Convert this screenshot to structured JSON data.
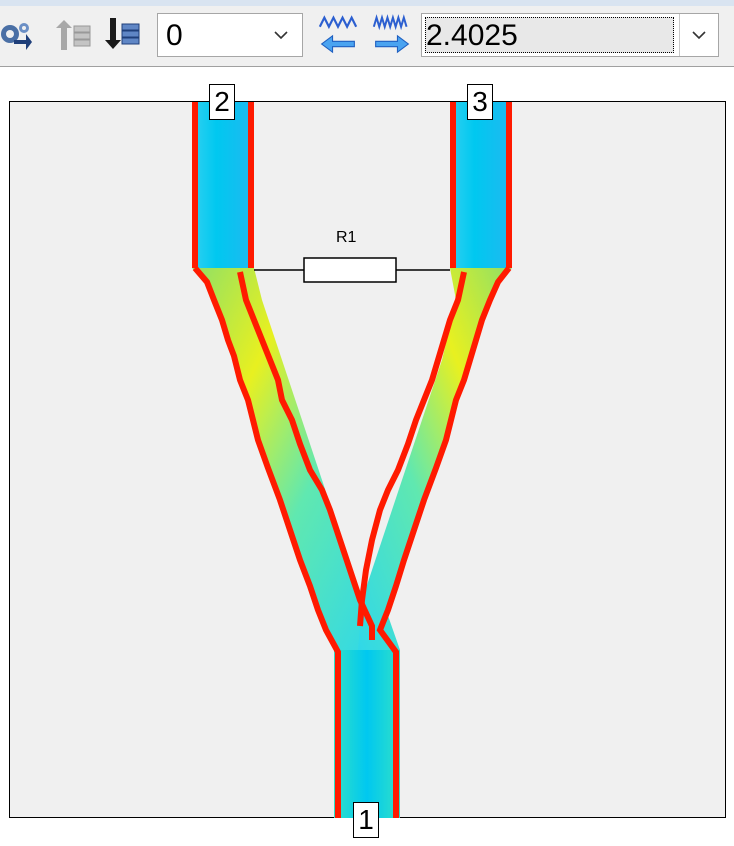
{
  "toolbar": {
    "icons": [
      "settings-gear-icon",
      "layers-up-icon",
      "layers-down-icon",
      "frequency-down-icon",
      "frequency-up-icon"
    ],
    "layer_select": {
      "value": "0"
    },
    "frequency_select": {
      "value": "2.4025"
    }
  },
  "layout": {
    "ports": [
      {
        "id": "port-1",
        "label": "1"
      },
      {
        "id": "port-2",
        "label": "2"
      },
      {
        "id": "port-3",
        "label": "3"
      }
    ],
    "resistor": {
      "label": "R1"
    },
    "colors": {
      "background": "#f0f0f0",
      "edge_current": "#ff1a00",
      "low_current": "#00c8f0",
      "mid_current": "#40e0d0",
      "high_current": "#e8f020"
    }
  }
}
